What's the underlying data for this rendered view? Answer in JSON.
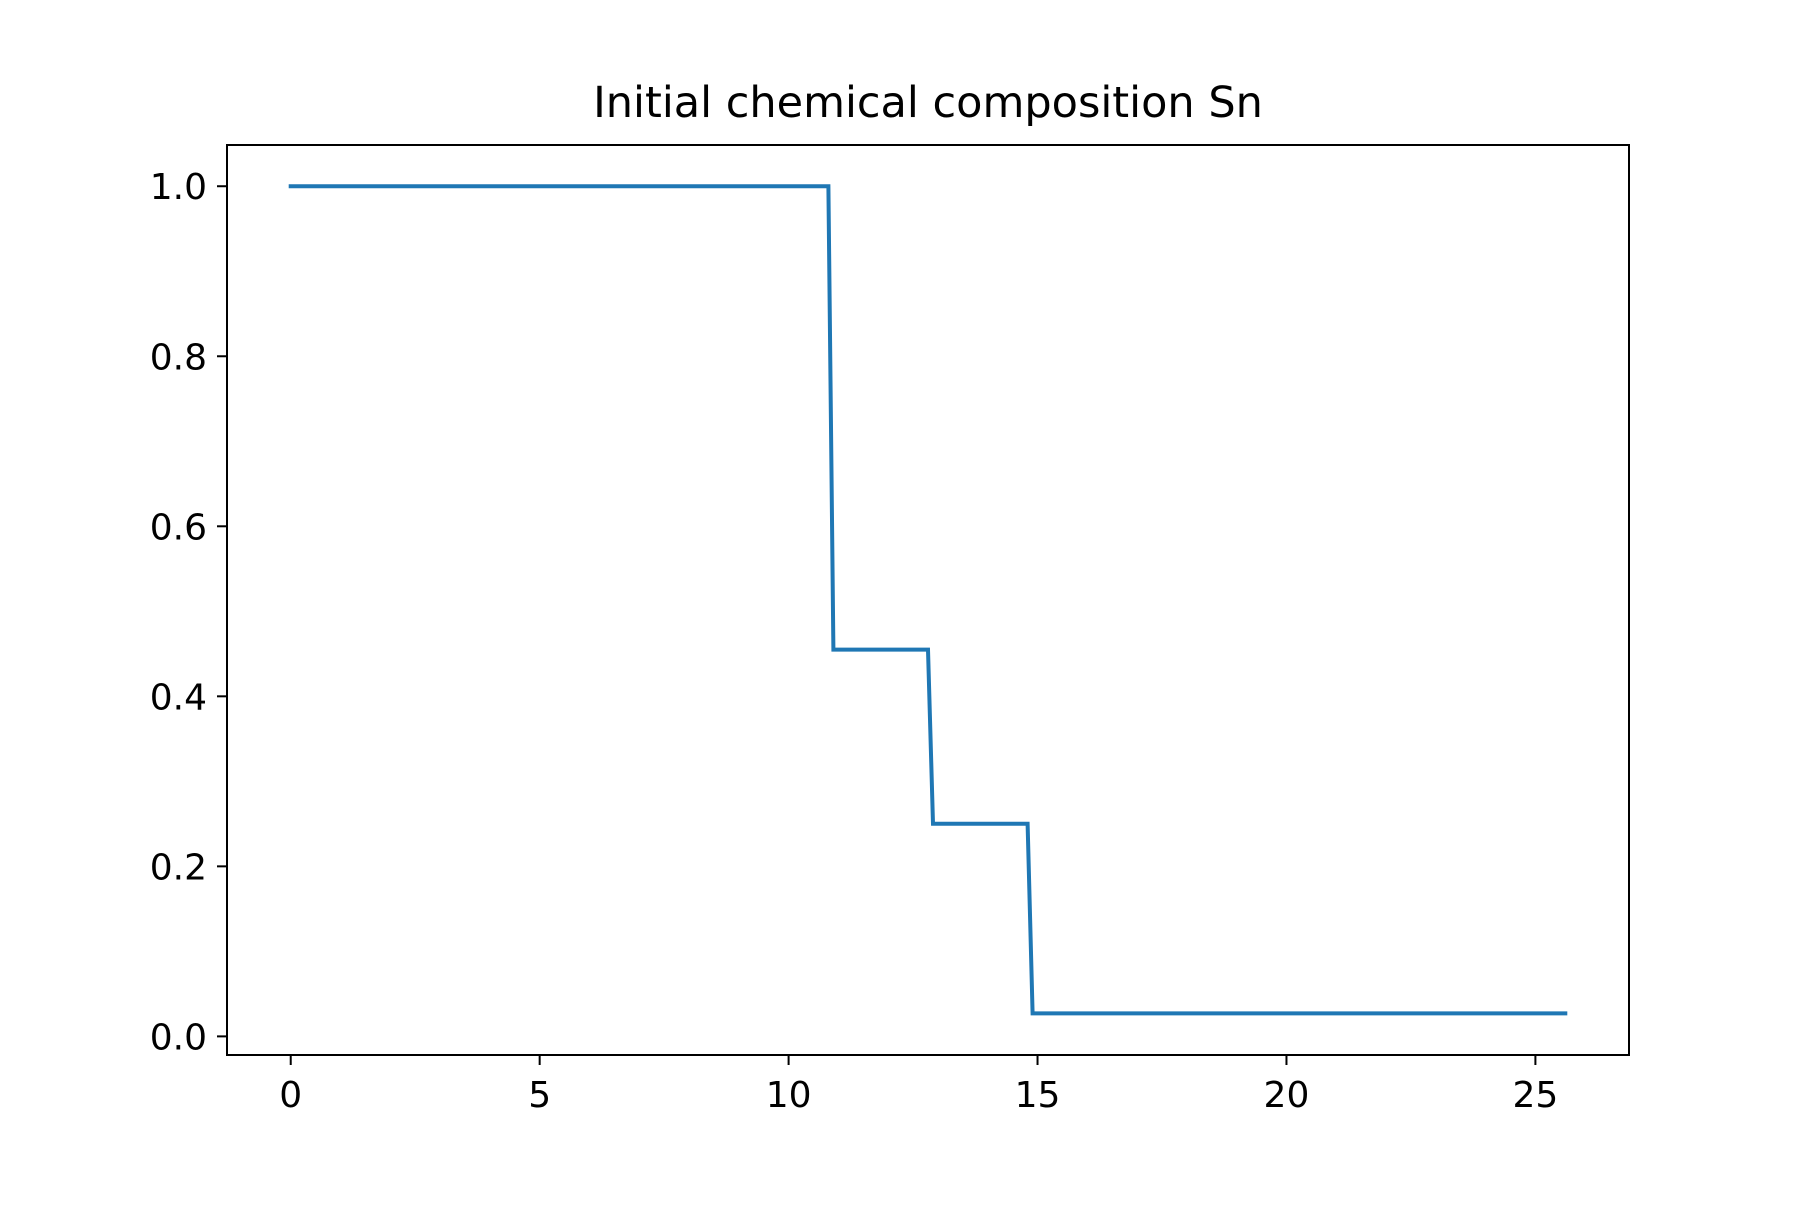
{
  "chart_data": {
    "type": "line",
    "title": "Initial chemical composition Sn",
    "xlabel": "",
    "ylabel": "",
    "xlim": [
      -1.28,
      26.88
    ],
    "ylim": [
      -0.0219,
      1.0485
    ],
    "xticks": [
      0,
      5,
      10,
      15,
      20,
      25
    ],
    "xtick_labels": [
      "0",
      "5",
      "10",
      "15",
      "20",
      "25"
    ],
    "yticks": [
      0.0,
      0.2,
      0.4,
      0.6,
      0.8,
      1.0
    ],
    "ytick_labels": [
      "0.0",
      "0.2",
      "0.4",
      "0.6",
      "0.8",
      "1.0"
    ],
    "grid": false,
    "series": [
      {
        "name": "Sn",
        "color": "#1f77b4",
        "x": [
          0,
          10.8,
          10.9,
          12.8,
          12.9,
          14.8,
          14.9,
          25.6
        ],
        "y": [
          1.0,
          1.0,
          0.455,
          0.455,
          0.25,
          0.25,
          0.027,
          0.027
        ]
      }
    ]
  }
}
